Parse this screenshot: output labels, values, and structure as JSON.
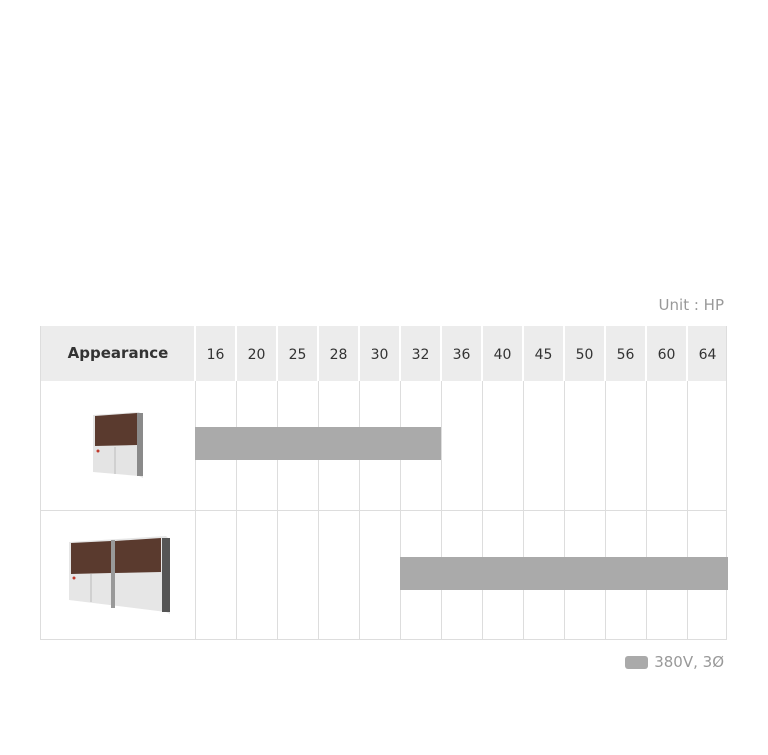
{
  "unit_label": "Unit : HP",
  "header": {
    "appearance": "Appearance"
  },
  "chart_data": {
    "type": "bar",
    "orientation": "horizontal-range",
    "categories": [
      "16",
      "20",
      "25",
      "28",
      "30",
      "32",
      "36",
      "40",
      "45",
      "50",
      "56",
      "60",
      "64"
    ],
    "rows": [
      {
        "image": "single-module-outdoor-unit",
        "from": "16",
        "to": "32"
      },
      {
        "image": "double-module-outdoor-unit",
        "from": "32",
        "to": "64"
      }
    ],
    "legend": [
      {
        "label": "380V, 3Ø",
        "color": "#aaaaaa"
      }
    ],
    "legend_position": "bottom-right"
  }
}
